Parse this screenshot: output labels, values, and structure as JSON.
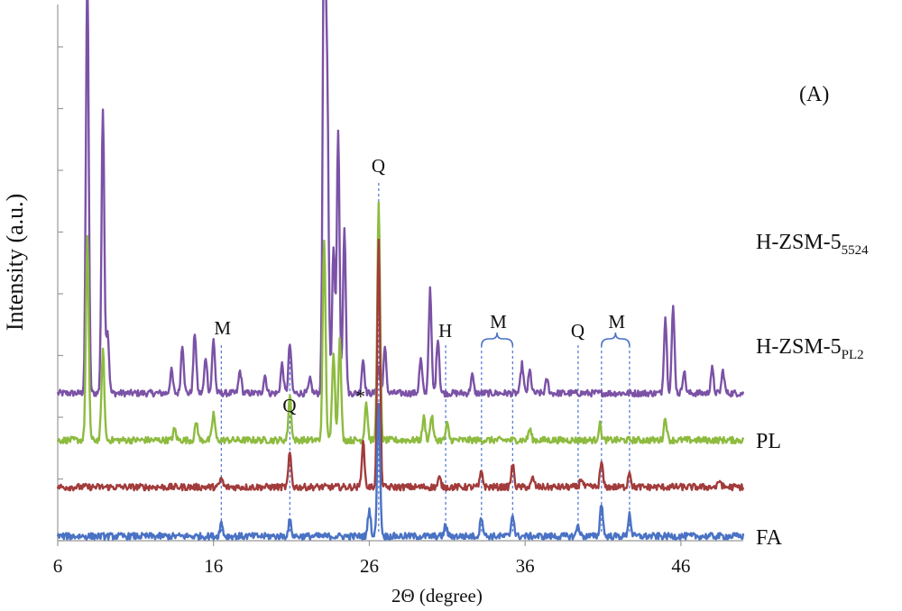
{
  "chart_data": {
    "type": "line",
    "title": "",
    "panel_label": "(A)",
    "xlabel": "2Θ (degree)",
    "ylabel": "Intensity (a.u.)",
    "xlim": [
      6,
      50
    ],
    "x_ticks": [
      "6",
      "16",
      "26",
      "36",
      "46"
    ],
    "grid": false,
    "series": [
      {
        "name_main": "H-ZSM-5",
        "name_sub": "5524",
        "color": "#7B52A6",
        "baseline": 0.64,
        "peaks": [
          [
            7.9,
            1.9
          ],
          [
            8.9,
            1.27
          ],
          [
            9.2,
            0.28
          ],
          [
            13.3,
            0.1
          ],
          [
            14.0,
            0.22
          ],
          [
            14.8,
            0.27
          ],
          [
            15.5,
            0.16
          ],
          [
            16.0,
            0.24
          ],
          [
            17.7,
            0.1
          ],
          [
            19.3,
            0.08
          ],
          [
            20.4,
            0.13
          ],
          [
            20.9,
            0.22
          ],
          [
            22.2,
            0.06
          ],
          [
            23.1,
            2.18
          ],
          [
            23.3,
            1.3
          ],
          [
            23.7,
            0.65
          ],
          [
            24.0,
            1.17
          ],
          [
            24.4,
            0.75
          ],
          [
            25.6,
            0.15
          ],
          [
            26.6,
            0.12
          ],
          [
            27.0,
            0.2
          ],
          [
            29.3,
            0.15
          ],
          [
            29.9,
            0.46
          ],
          [
            30.4,
            0.25
          ],
          [
            32.6,
            0.08
          ],
          [
            35.8,
            0.13
          ],
          [
            36.3,
            0.1
          ],
          [
            37.4,
            0.06
          ],
          [
            45.0,
            0.34
          ],
          [
            45.5,
            0.38
          ],
          [
            46.2,
            0.1
          ],
          [
            48.0,
            0.11
          ],
          [
            48.7,
            0.1
          ]
        ]
      },
      {
        "name_main": "H-ZSM-5",
        "name_sub": "PL2",
        "color": "#8DBB3F",
        "baseline": 0.43,
        "peaks": [
          [
            7.9,
            0.9
          ],
          [
            8.9,
            0.4
          ],
          [
            13.5,
            0.05
          ],
          [
            14.9,
            0.08
          ],
          [
            16.0,
            0.12
          ],
          [
            20.9,
            0.2
          ],
          [
            23.1,
            0.9
          ],
          [
            23.7,
            0.4
          ],
          [
            24.1,
            0.45
          ],
          [
            25.8,
            0.17
          ],
          [
            26.6,
            1.05
          ],
          [
            29.5,
            0.1
          ],
          [
            30.0,
            0.11
          ],
          [
            31.0,
            0.07
          ],
          [
            36.3,
            0.05
          ],
          [
            40.8,
            0.07
          ],
          [
            45.0,
            0.1
          ]
        ]
      },
      {
        "name_main": "PL",
        "name_sub": "",
        "color": "#A23B3B",
        "baseline": 0.22,
        "peaks": [
          [
            16.5,
            0.04
          ],
          [
            20.9,
            0.15
          ],
          [
            25.6,
            0.2
          ],
          [
            26.6,
            1.1
          ],
          [
            30.5,
            0.04
          ],
          [
            33.2,
            0.07
          ],
          [
            35.2,
            0.1
          ],
          [
            36.5,
            0.04
          ],
          [
            39.6,
            0.04
          ],
          [
            40.9,
            0.11
          ],
          [
            42.7,
            0.07
          ],
          [
            48.5,
            0.03
          ]
        ]
      },
      {
        "name_main": "FA",
        "name_sub": "",
        "color": "#4A72C4",
        "baseline": 0.0,
        "peaks": [
          [
            16.5,
            0.06
          ],
          [
            20.9,
            0.07
          ],
          [
            26.0,
            0.12
          ],
          [
            26.6,
            0.6
          ],
          [
            30.9,
            0.05
          ],
          [
            33.2,
            0.09
          ],
          [
            35.2,
            0.1
          ],
          [
            40.9,
            0.15
          ],
          [
            42.7,
            0.1
          ],
          [
            39.4,
            0.05
          ]
        ]
      }
    ],
    "annotations": [
      {
        "text": "M",
        "x": 16.5
      },
      {
        "text": "Q",
        "x": 20.9
      },
      {
        "text": "*",
        "x": 25.6
      },
      {
        "text": "Q",
        "x": 26.6
      },
      {
        "text": "H",
        "x": 30.9
      },
      {
        "text": "M",
        "x": 34.2
      },
      {
        "text": "Q",
        "x": 39.4
      },
      {
        "text": "M",
        "x": 41.8
      }
    ],
    "dashed_markers": [
      16.5,
      20.9,
      26.6,
      30.9,
      33.2,
      35.2,
      39.4,
      40.9,
      42.7
    ]
  }
}
